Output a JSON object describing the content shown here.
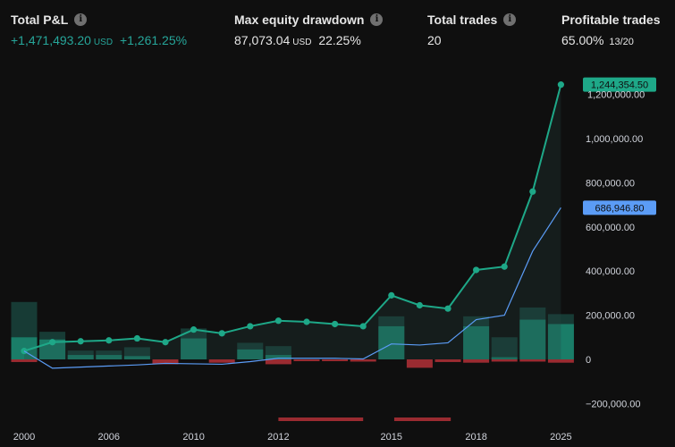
{
  "stats": {
    "total_pl": {
      "label": "Total P&L",
      "value": "+1,471,493.20",
      "unit": "USD",
      "pct": "+1,261.25%"
    },
    "max_drawdown": {
      "label": "Max equity drawdown",
      "value": "87,073.04",
      "unit": "USD",
      "pct": "22.25%"
    },
    "total_trades": {
      "label": "Total trades",
      "value": "20"
    },
    "profitable_trades": {
      "label": "Profitable trades",
      "value": "65.00%",
      "ratio": "13/20"
    }
  },
  "icons": {
    "info": "info-icon"
  },
  "colors": {
    "equity": "#1ea888",
    "buy_hold": "#5b9cf6",
    "profit_bar": "#1a7d68",
    "profit_bar_dark": "#173b35",
    "loss_bar": "#9a2b31",
    "drawdown_bar": "#9a2b31",
    "background": "#0f0f0f"
  },
  "chart_data": {
    "type": "line",
    "y_axis": {
      "min": -250000,
      "max": 1350000,
      "position": "right",
      "ticks": [
        -200000,
        0,
        200000,
        400000,
        600000,
        800000,
        1000000,
        1200000
      ],
      "tick_labels": [
        "−200,000.00",
        "0",
        "200,000.00",
        "400,000.00",
        "600,000.00",
        "800,000.00",
        "1,000,000.00",
        "1,200,000.00"
      ]
    },
    "x_axis": {
      "ticks": [
        0,
        3,
        6,
        9,
        13,
        16,
        19
      ],
      "tick_labels": [
        "2000",
        "2006",
        "2010",
        "2012",
        "2015",
        "2018",
        "2025"
      ]
    },
    "series": [
      {
        "key": "equity",
        "x": [
          0,
          1,
          2,
          3,
          4,
          5,
          6,
          7,
          8,
          9,
          10,
          11,
          12,
          13,
          14,
          15,
          16,
          17,
          18,
          19
        ],
        "values": [
          38000,
          78000,
          82000,
          86000,
          95000,
          78000,
          135000,
          118000,
          150000,
          175000,
          170000,
          160000,
          150000,
          290000,
          245000,
          230000,
          405000,
          420000,
          760000,
          1244354.5
        ],
        "markers": true,
        "last_label": "1,244,354.50"
      },
      {
        "key": "buy_hold",
        "x": [
          0,
          1,
          2,
          3,
          4,
          5,
          6,
          7,
          8,
          9,
          10,
          11,
          12,
          13,
          14,
          15,
          16,
          17,
          18,
          19
        ],
        "values": [
          38000,
          -40000,
          -35000,
          -30000,
          -25000,
          -18000,
          -20000,
          -22000,
          -10000,
          5000,
          5000,
          5000,
          2000,
          70000,
          65000,
          75000,
          180000,
          200000,
          490000,
          686946.8
        ],
        "markers": false,
        "last_label": "686,946.80"
      }
    ],
    "profit_bars": [
      260000,
      125000,
      40000,
      40000,
      55000,
      0,
      140000,
      0,
      75000,
      60000,
      0,
      0,
      0,
      195000,
      0,
      0,
      195000,
      100000,
      235000,
      205000
    ],
    "profit_bars_inner": [
      100000,
      90000,
      20000,
      20000,
      15000,
      0,
      95000,
      0,
      45000,
      20000,
      0,
      0,
      0,
      150000,
      0,
      0,
      150000,
      10000,
      180000,
      160000
    ],
    "loss_bars": [
      -12000,
      0,
      0,
      0,
      0,
      -22000,
      0,
      -15000,
      0,
      -22000,
      -8000,
      -8000,
      -10000,
      0,
      -38000,
      -12000,
      -15000,
      -10000,
      -10000,
      -15000
    ],
    "drawdown_ranges": [
      [
        9,
        12
      ],
      [
        13.1,
        15.1
      ]
    ]
  }
}
